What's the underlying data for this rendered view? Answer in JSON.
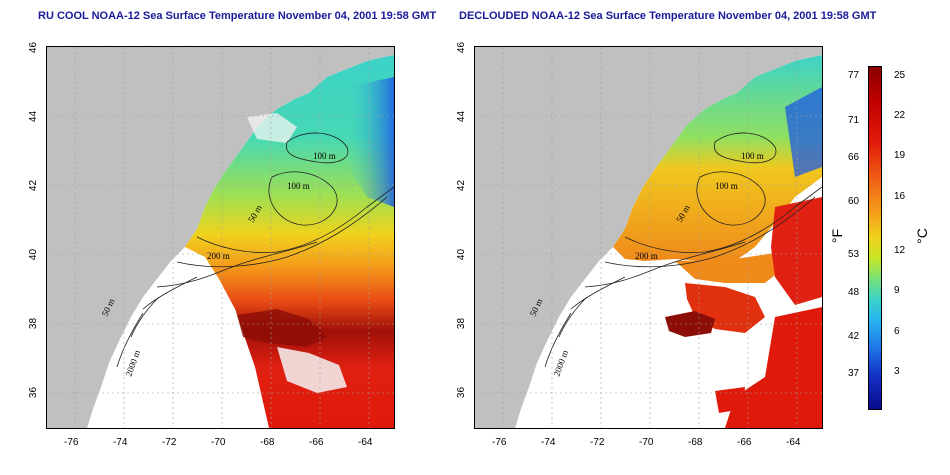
{
  "titles": {
    "left": "RU COOL NOAA-12 Sea Surface Temperature November 04, 2001 19:58 GMT",
    "right": "DECLOUDED NOAA-12 Sea Surface Temperature November 04, 2001 19:58 GMT"
  },
  "axes": {
    "x_ticks": [
      "-76",
      "-74",
      "-72",
      "-70",
      "-68",
      "-66",
      "-64"
    ],
    "y_ticks": [
      "46",
      "44",
      "42",
      "40",
      "38",
      "36"
    ]
  },
  "contour_labels": {
    "left": [
      "100 m",
      "100 m",
      "50 m",
      "200 m",
      "50 m",
      "2000 m"
    ],
    "right": [
      "100 m",
      "100 m",
      "50 m",
      "200 m",
      "50 m",
      "2000 m"
    ]
  },
  "colorbar": {
    "fahrenheit_ticks": [
      "77",
      "71",
      "66",
      "60",
      "53",
      "48",
      "42",
      "37"
    ],
    "celsius_ticks": [
      "25",
      "22",
      "19",
      "16",
      "12",
      "9",
      "6",
      "3"
    ],
    "fahrenheit_unit": "°F",
    "celsius_unit": "°C"
  },
  "colors": {
    "land": "#c0c0c0",
    "title": "#1a1a9a",
    "contour": "#202020",
    "grid": "#a0a0a0"
  }
}
